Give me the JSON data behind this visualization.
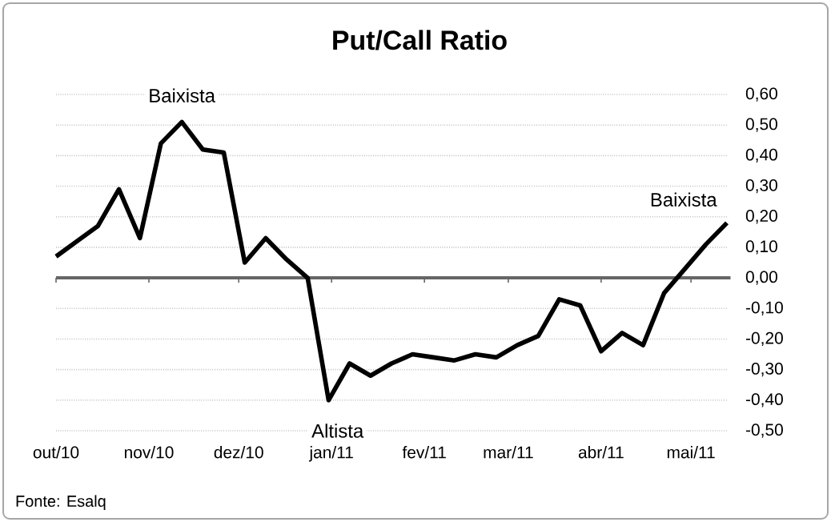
{
  "chart_data": {
    "type": "line",
    "title": "Put/Call Ratio",
    "x": [
      "2010-10-01",
      "2010-10-08",
      "2010-10-15",
      "2010-10-22",
      "2010-10-29",
      "2010-11-05",
      "2010-11-12",
      "2010-11-19",
      "2010-11-26",
      "2010-12-03",
      "2010-12-10",
      "2010-12-17",
      "2010-12-24",
      "2010-12-31",
      "2011-01-07",
      "2011-01-14",
      "2011-01-21",
      "2011-01-28",
      "2011-02-04",
      "2011-02-11",
      "2011-02-18",
      "2011-02-25",
      "2011-03-04",
      "2011-03-11",
      "2011-03-18",
      "2011-03-25",
      "2011-04-01",
      "2011-04-08",
      "2011-04-15",
      "2011-04-22",
      "2011-04-29",
      "2011-05-06",
      "2011-05-13"
    ],
    "values": [
      0.07,
      0.12,
      0.17,
      0.29,
      0.13,
      0.44,
      0.51,
      0.42,
      0.41,
      0.05,
      0.13,
      0.06,
      0.0,
      -0.4,
      -0.28,
      -0.32,
      -0.28,
      -0.25,
      -0.26,
      -0.27,
      -0.25,
      -0.26,
      -0.22,
      -0.19,
      -0.07,
      -0.09,
      -0.24,
      -0.18,
      -0.22,
      -0.05,
      0.03,
      0.11,
      0.18
    ],
    "color": "#000000",
    "xlim": [
      "2010-10-01",
      "2011-05-13"
    ],
    "xticks": [
      {
        "value": "2010-10-01",
        "label": "out/10"
      },
      {
        "value": "2010-11-01",
        "label": "nov/10"
      },
      {
        "value": "2010-12-01",
        "label": "dez/10"
      },
      {
        "value": "2011-01-01",
        "label": "jan/11"
      },
      {
        "value": "2011-02-01",
        "label": "fev/11"
      },
      {
        "value": "2011-03-01",
        "label": "mar/11"
      },
      {
        "value": "2011-04-01",
        "label": "abr/11"
      },
      {
        "value": "2011-05-01",
        "label": "mai/11"
      }
    ],
    "ylim": [
      -0.5,
      0.6
    ],
    "yticks": [
      {
        "value": 0.6,
        "label": "0,60"
      },
      {
        "value": 0.5,
        "label": "0,50"
      },
      {
        "value": 0.4,
        "label": "0,40"
      },
      {
        "value": 0.3,
        "label": "0,30"
      },
      {
        "value": 0.2,
        "label": "0,20"
      },
      {
        "value": 0.1,
        "label": "0,10"
      },
      {
        "value": 0.0,
        "label": "0,00"
      },
      {
        "value": -0.1,
        "label": "-0,10"
      },
      {
        "value": -0.2,
        "label": "-0,20"
      },
      {
        "value": -0.3,
        "label": "-0,30"
      },
      {
        "value": -0.4,
        "label": "-0,40"
      },
      {
        "value": -0.5,
        "label": "-0,50"
      }
    ],
    "grid": "y",
    "marker": "none",
    "line_style": "solid",
    "annotations": [
      {
        "text": "Baixista",
        "x": "2010-11-12",
        "y": 0.51
      },
      "Altista",
      {
        "text": "Baixista",
        "x": "2011-05-13",
        "y": 0.18
      },
      "Fonte: Esalq"
    ]
  }
}
